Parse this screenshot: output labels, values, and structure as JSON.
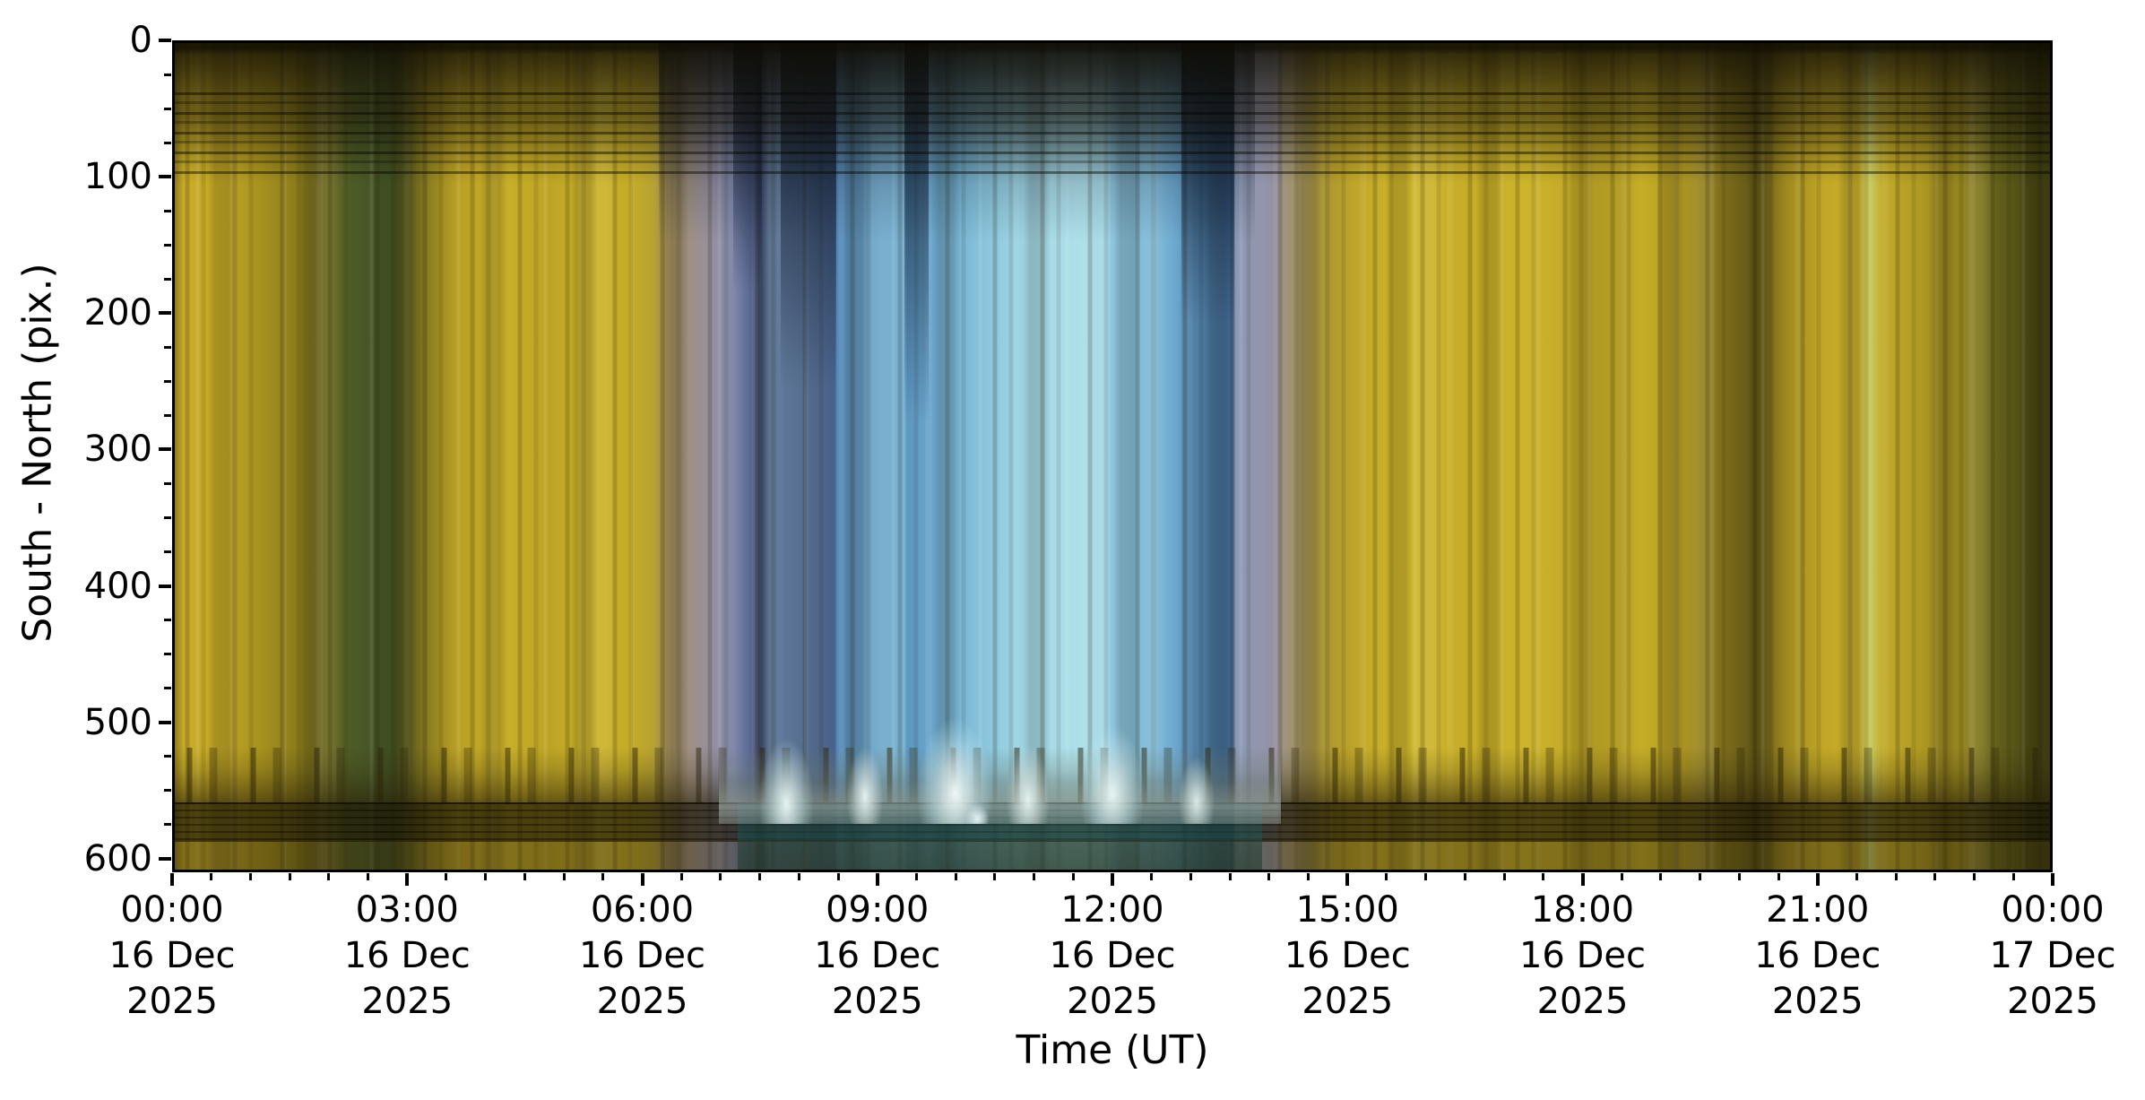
{
  "chart_data": {
    "type": "heatmap",
    "subtype": "keogram",
    "title": "",
    "xlabel": "Time (UT)",
    "ylabel": "South - North (pix.)",
    "x_range_hours": [
      0,
      24
    ],
    "x_start_label": "00:00 16 Dec 2025",
    "x_end_label": "00:00 17 Dec 2025",
    "y_range": [
      0,
      610
    ],
    "y_ticks": [
      0,
      100,
      200,
      300,
      400,
      500,
      600
    ],
    "y_minor_interval": 25,
    "x_minor_interval_hours": 0.5,
    "grid": false,
    "legend": null,
    "x_ticks": [
      {
        "hour": 0,
        "time": "00:00",
        "date": "16 Dec",
        "year": "2025"
      },
      {
        "hour": 3,
        "time": "03:00",
        "date": "16 Dec",
        "year": "2025"
      },
      {
        "hour": 6,
        "time": "06:00",
        "date": "16 Dec",
        "year": "2025"
      },
      {
        "hour": 9,
        "time": "09:00",
        "date": "16 Dec",
        "year": "2025"
      },
      {
        "hour": 12,
        "time": "12:00",
        "date": "16 Dec",
        "year": "2025"
      },
      {
        "hour": 15,
        "time": "15:00",
        "date": "16 Dec",
        "year": "2025"
      },
      {
        "hour": 18,
        "time": "18:00",
        "date": "16 Dec",
        "year": "2025"
      },
      {
        "hour": 21,
        "time": "21:00",
        "date": "16 Dec",
        "year": "2025"
      },
      {
        "hour": 24,
        "time": "00:00",
        "date": "17 Dec",
        "year": "2025"
      }
    ],
    "time_bands": [
      [
        0,
        "#8f7a1c"
      ],
      [
        0.5,
        "#c9ad28"
      ],
      [
        2.5,
        "#c2a626"
      ],
      [
        4.5,
        "#a8921f"
      ],
      [
        6.5,
        "#8c7c1b"
      ],
      [
        8,
        "#6e681e"
      ],
      [
        9.5,
        "#4c5a26"
      ],
      [
        11.5,
        "#435426"
      ],
      [
        13,
        "#7c721f"
      ],
      [
        15,
        "#b89e24"
      ],
      [
        17.5,
        "#c9b029"
      ],
      [
        20,
        "#bda424"
      ],
      [
        22.5,
        "#cbb22a"
      ],
      [
        24.5,
        "#c3aa26"
      ],
      [
        25.5,
        "#b8a233"
      ],
      [
        26.2,
        "#a08a50"
      ],
      [
        27.5,
        "#9e9084"
      ],
      [
        28.6,
        "#9690a0"
      ],
      [
        29.8,
        "#8089ad"
      ],
      [
        30.6,
        "#5c6a94"
      ],
      [
        31.3,
        "#3e4e78"
      ],
      [
        31.7,
        "#6d87ab"
      ],
      [
        33.5,
        "#5e7aa2"
      ],
      [
        35.2,
        "#48618a"
      ],
      [
        35.3,
        "#5488b8"
      ],
      [
        37.2,
        "#69a2c8"
      ],
      [
        38.9,
        "#7db6d4"
      ],
      [
        39.05,
        "#5d97c2"
      ],
      [
        41.5,
        "#74b2d4"
      ],
      [
        44,
        "#93cde0"
      ],
      [
        46.5,
        "#a8dbe8"
      ],
      [
        48.5,
        "#aee0ea"
      ],
      [
        49.8,
        "#a0d6e5"
      ],
      [
        49.95,
        "#8ec4dc"
      ],
      [
        52,
        "#7cb8d8"
      ],
      [
        53.6,
        "#6ca8d0"
      ],
      [
        53.75,
        "#5e94c0"
      ],
      [
        55.2,
        "#4e82b2"
      ],
      [
        56.4,
        "#40699a"
      ],
      [
        56.55,
        "#8b99b8"
      ],
      [
        58,
        "#9295ab"
      ],
      [
        58.8,
        "#968f9e"
      ],
      [
        59,
        "#9e9484"
      ],
      [
        60.2,
        "#a29258"
      ],
      [
        61.5,
        "#ae982c"
      ],
      [
        63.5,
        "#c4aa28"
      ],
      [
        66,
        "#cfb62c"
      ],
      [
        69,
        "#c6ac27"
      ],
      [
        72,
        "#cdb42b"
      ],
      [
        75,
        "#c2a826"
      ],
      [
        78,
        "#c9b028"
      ],
      [
        80.5,
        "#ab9422"
      ],
      [
        82.5,
        "#7e6e1b"
      ],
      [
        84.3,
        "#605617"
      ],
      [
        86,
        "#a08a20"
      ],
      [
        88,
        "#c2a827"
      ],
      [
        89.7,
        "#c9ae29"
      ],
      [
        90.4,
        "#c9cb66"
      ],
      [
        91.1,
        "#c2aa28"
      ],
      [
        93,
        "#b09a24"
      ],
      [
        95,
        "#98861f"
      ],
      [
        97,
        "#6f6b1e"
      ],
      [
        98.6,
        "#545416"
      ],
      [
        100,
        "#3c3a10"
      ]
    ],
    "features": {
      "top_dark_band_color": "#151103",
      "horizon_silhouette_color": "#2a2307",
      "bottom_dark_band_color": "#1c1604",
      "daytime_horizon_flare_color": "#eefaf8",
      "bottom_teal_color": "#1c5858",
      "night_color": "#c9ae29",
      "day_color": "#a8dbe8"
    }
  }
}
